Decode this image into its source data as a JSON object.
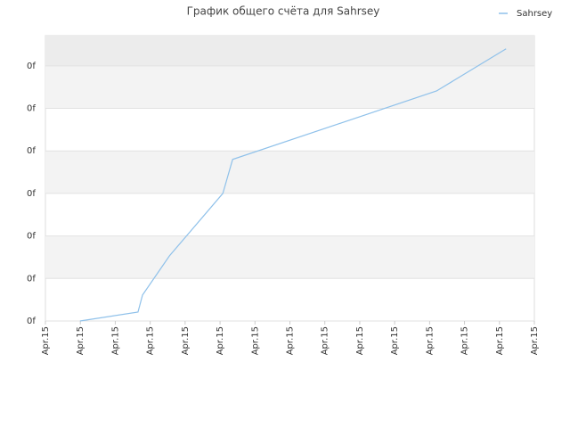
{
  "chart_data": {
    "type": "line",
    "title": "График общего счёта для Sahrsey",
    "series": [
      {
        "name": "Sahrsey",
        "color": "#8fc1ea",
        "x": [
          0.99,
          2.65,
          2.78,
          3.55,
          5.08,
          5.36,
          11.2,
          13.19
        ],
        "values": [
          0,
          0.21,
          0.61,
          1.53,
          3.0,
          3.8,
          5.41,
          6.4
        ]
      }
    ],
    "xlim": [
      0,
      14
    ],
    "xticks": [
      {
        "value": 0,
        "label": "Apr.15"
      },
      {
        "value": 1,
        "label": "Apr.15"
      },
      {
        "value": 2,
        "label": "Apr.15"
      },
      {
        "value": 3,
        "label": "Apr.15"
      },
      {
        "value": 4,
        "label": "Apr.15"
      },
      {
        "value": 5,
        "label": "Apr.15"
      },
      {
        "value": 6,
        "label": "Apr.15"
      },
      {
        "value": 7,
        "label": "Apr.15"
      },
      {
        "value": 8,
        "label": "Apr.15"
      },
      {
        "value": 9,
        "label": "Apr.15"
      },
      {
        "value": 10,
        "label": "Apr.15"
      },
      {
        "value": 11,
        "label": "Apr.15"
      },
      {
        "value": 12,
        "label": "Apr.15"
      },
      {
        "value": 13,
        "label": "Apr.15"
      },
      {
        "value": 14,
        "label": "Apr.15"
      }
    ],
    "ylim": [
      0,
      6.71
    ],
    "yticks": [
      {
        "value": 0,
        "label": "0f"
      },
      {
        "value": 1,
        "label": "0f"
      },
      {
        "value": 2,
        "label": "0f"
      },
      {
        "value": 3,
        "label": "0f"
      },
      {
        "value": 4,
        "label": "0f"
      },
      {
        "value": 5,
        "label": "0f"
      },
      {
        "value": 6,
        "label": "0f"
      }
    ],
    "grid": true,
    "legend": "top-right"
  }
}
